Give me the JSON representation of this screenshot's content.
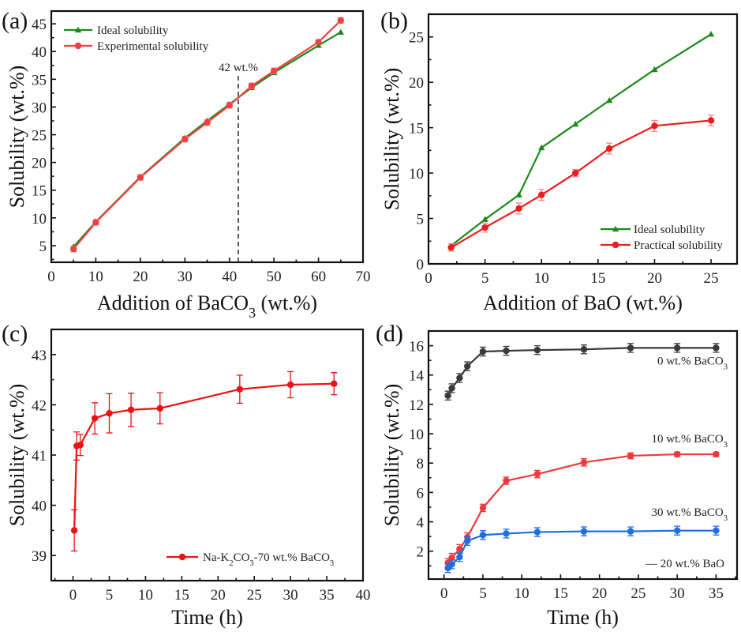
{
  "chart_data": [
    {
      "id": "a",
      "type": "line",
      "panel_label": "(a)",
      "title": "",
      "xlabel": "Addition of BaCO",
      "xlabel_sub": "3",
      "xlabel_tail": " (wt.%)",
      "ylabel": "Solubility (wt.%)",
      "xlim": [
        0,
        70
      ],
      "ylim": [
        2,
        47.3
      ],
      "xticks": [
        0,
        10,
        20,
        30,
        40,
        50,
        60,
        70
      ],
      "yticks": [
        5,
        10,
        15,
        20,
        25,
        30,
        35,
        40,
        45
      ],
      "grid": false,
      "legend_position": "top-left",
      "annotation": {
        "text": "42 wt.%",
        "x": 42,
        "style": "dashed-vertical"
      },
      "series": [
        {
          "name": "Ideal solubility",
          "color": "#1a8a1a",
          "marker": "triangle",
          "x": [
            5,
            10,
            20,
            30,
            35,
            40,
            45,
            50,
            60,
            65
          ],
          "y": [
            4.8,
            9.3,
            17.4,
            24.4,
            27.5,
            30.5,
            33.5,
            36.2,
            41.1,
            43.5
          ],
          "err": null
        },
        {
          "name": "Experimental solubility",
          "color": "#f04040",
          "marker": "circle",
          "x": [
            5,
            10,
            20,
            30,
            35,
            40,
            45,
            50,
            60,
            65
          ],
          "y": [
            4.4,
            9.2,
            17.3,
            24.2,
            27.2,
            30.3,
            33.8,
            36.5,
            41.7,
            45.6
          ],
          "err": [
            0.5,
            0.5,
            0.5,
            0.5,
            0.5,
            0.5,
            0.5,
            0.5,
            0.4,
            0.5
          ]
        }
      ]
    },
    {
      "id": "b",
      "type": "line",
      "panel_label": "(b)",
      "title": "",
      "xlabel": "Addition of BaO (wt.%)",
      "xlabel_sub": "",
      "xlabel_tail": "",
      "ylabel": "Solubility (wt.%)",
      "xlim": [
        0,
        27.3
      ],
      "ylim": [
        0,
        27.5
      ],
      "xticks": [
        0,
        5,
        10,
        15,
        20,
        25
      ],
      "yticks": [
        0,
        5,
        10,
        15,
        20,
        25
      ],
      "grid": false,
      "legend_position": "bottom-right",
      "annotation": null,
      "series": [
        {
          "name": "Ideal solubility",
          "color": "#1a8a1a",
          "marker": "triangle",
          "x": [
            2,
            5,
            8,
            10,
            13,
            16,
            20,
            25
          ],
          "y": [
            2.0,
            4.9,
            7.6,
            12.8,
            15.4,
            18.0,
            21.4,
            25.3
          ],
          "err": null
        },
        {
          "name": "Practical solubility",
          "color": "#ee1c1c",
          "marker": "circle",
          "x": [
            2,
            5,
            8,
            10,
            13,
            16,
            20,
            25
          ],
          "y": [
            1.8,
            4.0,
            6.1,
            7.6,
            10.0,
            12.7,
            15.2,
            15.8
          ],
          "err": [
            0.4,
            0.5,
            0.6,
            0.6,
            0.4,
            0.6,
            0.6,
            0.6
          ]
        }
      ]
    },
    {
      "id": "c",
      "type": "line",
      "panel_label": "(c)",
      "title": "",
      "xlabel": "Time (h)",
      "xlabel_sub": "",
      "xlabel_tail": "",
      "ylabel": "Solubility (wt.%)",
      "xlim": [
        -3,
        40
      ],
      "ylim": [
        38.5,
        43.5
      ],
      "xticks": [
        0,
        5,
        10,
        15,
        20,
        25,
        30,
        35,
        40
      ],
      "yticks": [
        39,
        40,
        41,
        42,
        43
      ],
      "grid": false,
      "legend_position": "bottom-right",
      "annotation": null,
      "series": [
        {
          "name": "Na-K2CO3-70 wt.% BaCO3",
          "legend_parts": [
            "Na-K",
            "2",
            "CO",
            "3",
            "-70 wt.% BaCO",
            "3"
          ],
          "color": "#ee1111",
          "marker": "circle",
          "x": [
            0.17,
            0.5,
            1,
            3,
            5,
            8,
            12,
            23,
            30,
            36
          ],
          "y": [
            39.5,
            41.18,
            41.2,
            41.73,
            41.83,
            41.9,
            41.93,
            42.31,
            42.4,
            42.42
          ],
          "err": [
            0.41,
            0.28,
            0.21,
            0.31,
            0.39,
            0.33,
            0.31,
            0.28,
            0.26,
            0.22
          ]
        }
      ]
    },
    {
      "id": "d",
      "type": "line",
      "panel_label": "(d)",
      "title": "",
      "xlabel": "Time (h)",
      "xlabel_sub": "",
      "xlabel_tail": "",
      "ylabel": "Solubility (wt.%)",
      "xlim": [
        -2,
        37.7
      ],
      "ylim": [
        0.1,
        17
      ],
      "xticks": [
        0,
        5,
        10,
        15,
        20,
        25,
        30,
        35
      ],
      "yticks": [
        2,
        4,
        6,
        8,
        10,
        12,
        14,
        16
      ],
      "grid": false,
      "legend_position": "bottom-right",
      "annotation": {
        "text": "— 20 wt.% BaO"
      },
      "series": [
        {
          "name": "0 wt.% BaCO3",
          "label_parts": [
            "0 wt.% BaCO",
            "3"
          ],
          "color": "#3a3a3a",
          "marker": "circle",
          "x": [
            0.5,
            1,
            2,
            3,
            5,
            8,
            12,
            18,
            24,
            30,
            35
          ],
          "y": [
            12.6,
            13.1,
            13.8,
            14.6,
            15.6,
            15.65,
            15.7,
            15.75,
            15.85,
            15.85,
            15.85
          ],
          "err": [
            0.3,
            0.3,
            0.3,
            0.3,
            0.3,
            0.3,
            0.3,
            0.3,
            0.3,
            0.3,
            0.3
          ]
        },
        {
          "name": "10 wt.% BaCO3",
          "label_parts": [
            "10 wt.% BaCO",
            "3"
          ],
          "color": "#ee3a3a",
          "marker": "circle",
          "x": [
            0.5,
            1,
            2,
            3,
            5,
            8,
            12,
            18,
            24,
            30,
            35
          ],
          "y": [
            1.2,
            1.55,
            2.15,
            2.95,
            4.95,
            6.8,
            7.25,
            8.05,
            8.5,
            8.6,
            8.6
          ],
          "err": [
            0.3,
            0.3,
            0.3,
            0.3,
            0.25,
            0.25,
            0.25,
            0.25,
            0.2,
            0.15,
            0.15
          ]
        },
        {
          "name": "30 wt.% BaCO3",
          "label_parts": [
            "30 wt.% BaCO",
            "3"
          ],
          "color": "#1e6fe0",
          "marker": "circle",
          "x": [
            0.5,
            1,
            2,
            3,
            5,
            8,
            12,
            18,
            24,
            30,
            35
          ],
          "y": [
            0.85,
            1.1,
            1.6,
            2.7,
            3.1,
            3.2,
            3.3,
            3.35,
            3.35,
            3.4,
            3.4
          ],
          "err": [
            0.3,
            0.3,
            0.3,
            0.3,
            0.3,
            0.3,
            0.3,
            0.3,
            0.3,
            0.3,
            0.3
          ]
        }
      ]
    }
  ]
}
